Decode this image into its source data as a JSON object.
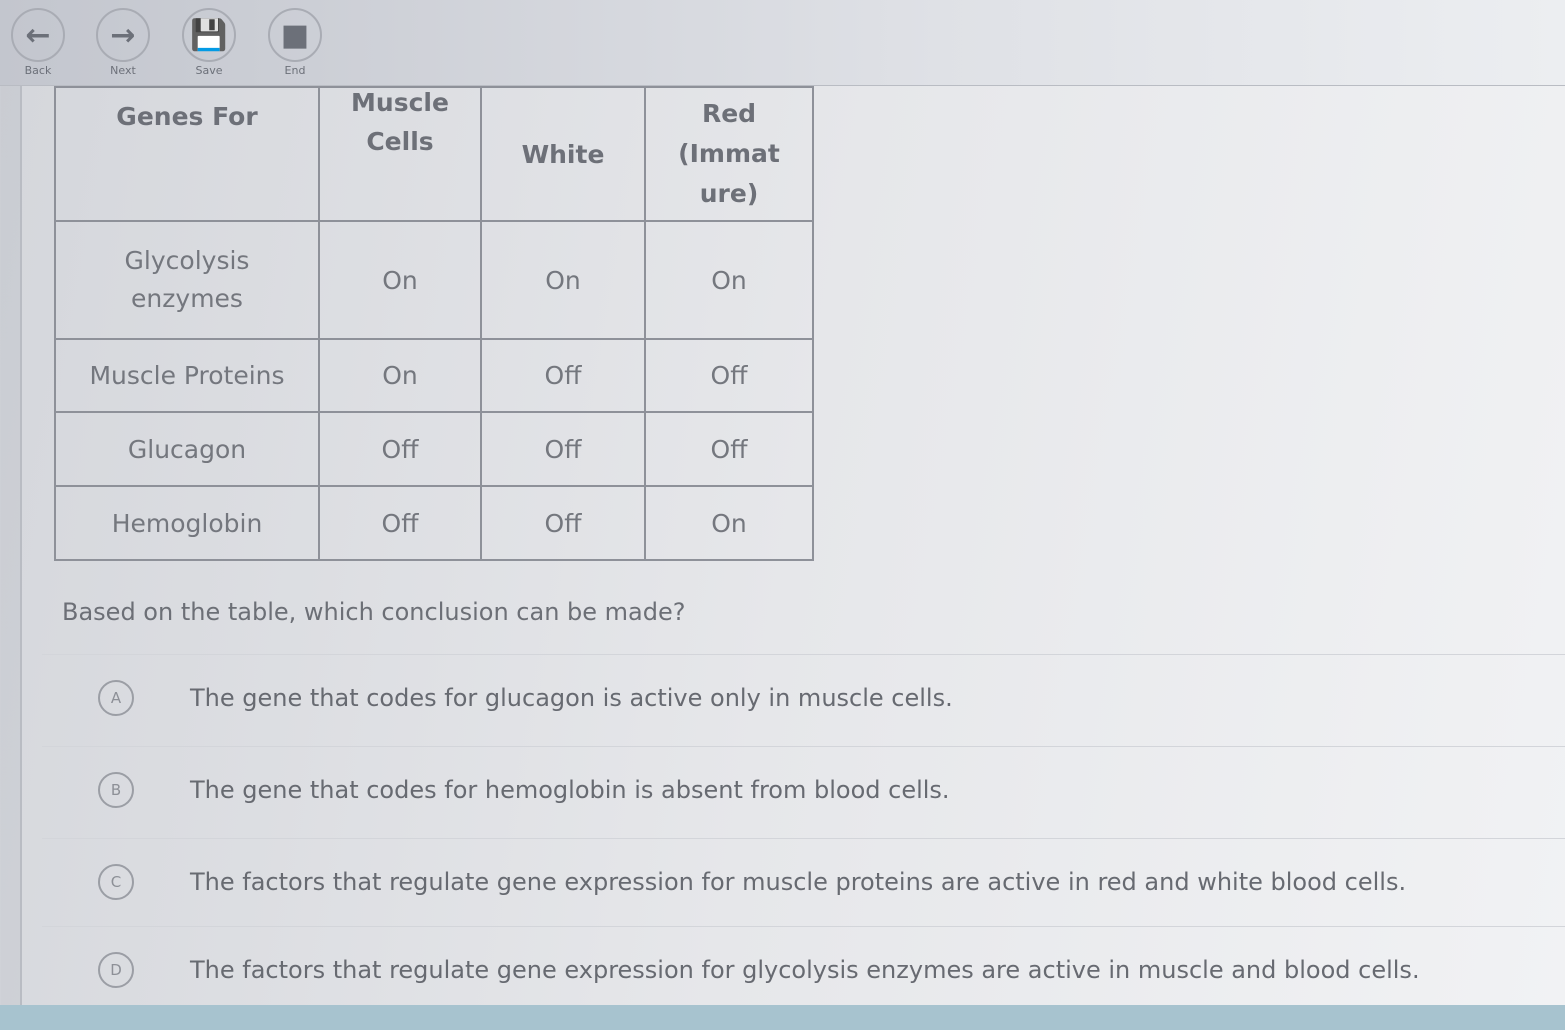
{
  "toolbar": {
    "buttons": [
      {
        "label": "Back",
        "icon": "arrow-left-icon"
      },
      {
        "label": "Next",
        "icon": "arrow-right-icon"
      },
      {
        "label": "Save",
        "icon": "save-icon"
      },
      {
        "label": "End",
        "icon": "stop-icon"
      }
    ]
  },
  "table": {
    "headers": [
      [
        "Genes For"
      ],
      [
        "Muscle",
        "Cells"
      ],
      [
        "White"
      ],
      [
        "Red",
        "(Immat",
        "ure)"
      ]
    ],
    "rows": [
      [
        "Glycolysis enzymes",
        "On",
        "On",
        "On"
      ],
      [
        "Muscle Proteins",
        "On",
        "Off",
        "Off"
      ],
      [
        "Glucagon",
        "Off",
        "Off",
        "Off"
      ],
      [
        "Hemoglobin",
        "Off",
        "Off",
        "On"
      ]
    ]
  },
  "question": "Based on the table, which conclusion can be made?",
  "options": [
    {
      "letter": "A",
      "text": "The gene that codes for glucagon is active only in muscle cells."
    },
    {
      "letter": "B",
      "text": "The gene that codes for hemoglobin is absent from blood cells."
    },
    {
      "letter": "C",
      "text": "The factors that regulate gene expression for muscle proteins are active in red and white blood cells."
    },
    {
      "letter": "D",
      "text": "The factors that regulate gene expression for glycolysis enzymes are active in muscle and blood cells."
    }
  ]
}
